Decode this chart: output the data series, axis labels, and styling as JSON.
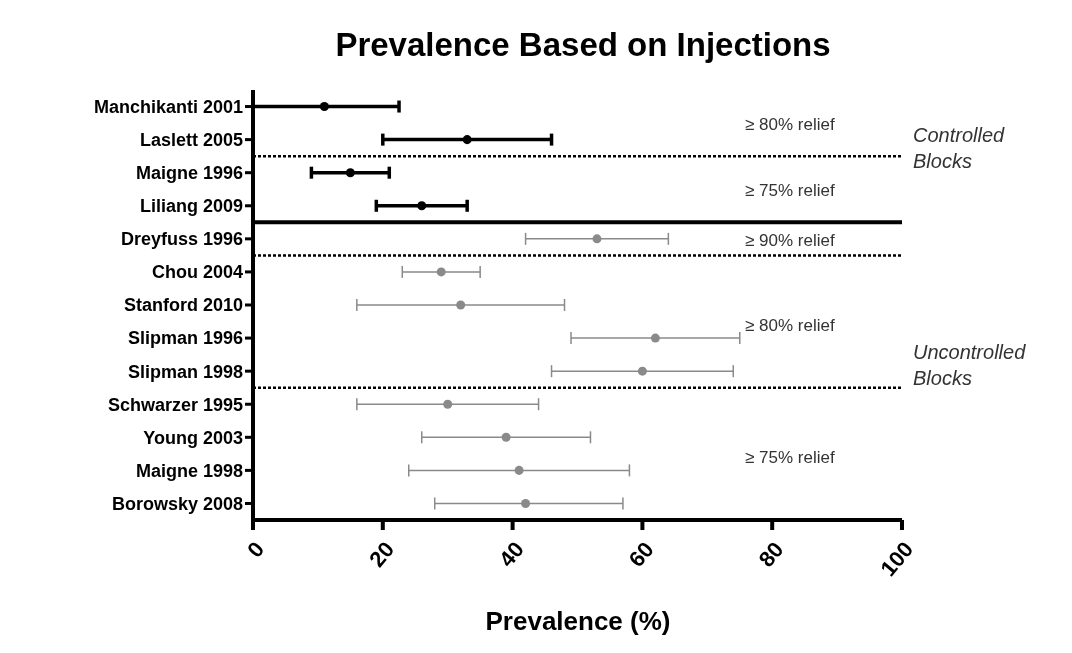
{
  "chart_data": {
    "type": "scatter",
    "title": "Prevalence Based on Injections",
    "xlabel": "Prevalence (%)",
    "orientation": "horizontal",
    "categories": [
      "Manchikanti 2001",
      "Laslett 2005",
      "Maigne 1996",
      "Liliang 2009",
      "Dreyfuss 1996",
      "Chou 2004",
      "Stanford 2010",
      "Slipman 1996",
      "Slipman 1998",
      "Schwarzer 1995",
      "Young 2003",
      "Maigne 1998",
      "Borowsky 2008"
    ],
    "series": [
      {
        "color": "#000000",
        "values": [
          11,
          33,
          15,
          26,
          null,
          null,
          null,
          null,
          null,
          null,
          null,
          null,
          null
        ],
        "errors": [
          [
            0,
            22.5
          ],
          [
            20,
            46
          ],
          [
            9,
            21
          ],
          [
            19,
            33
          ],
          null,
          null,
          null,
          null,
          null,
          null,
          null,
          null,
          null
        ]
      },
      {
        "color": "#8a8a8a",
        "values": [
          null,
          null,
          null,
          null,
          53,
          29,
          32,
          62,
          60,
          30,
          39,
          41,
          42
        ],
        "errors": [
          null,
          null,
          null,
          null,
          [
            42,
            64
          ],
          [
            23,
            35
          ],
          [
            16,
            48
          ],
          [
            49,
            75
          ],
          [
            46,
            74
          ],
          [
            16,
            44
          ],
          [
            26,
            52
          ],
          [
            24,
            58
          ],
          [
            28,
            57
          ]
        ]
      }
    ],
    "xlim": [
      0,
      100
    ],
    "xticks": [
      0,
      20,
      40,
      60,
      80,
      100
    ],
    "ref_lines": [
      {
        "axis": "y",
        "value": "Laslett 2005",
        "line_style": "dotted"
      },
      {
        "axis": "y",
        "value": "Liliang 2009",
        "line_style": "solid"
      },
      {
        "axis": "y",
        "value": "Dreyfuss 1996",
        "line_style": "dotted"
      },
      {
        "axis": "y",
        "value": "Slipman 1998",
        "line_style": "dotted"
      }
    ],
    "annotations": [
      "≥ 80% relief",
      "≥ 75% relief",
      "≥ 90% relief",
      "≥ 80% relief",
      "≥ 75% relief",
      "Controlled Blocks",
      "Uncontrolled Blocks"
    ],
    "marker": "circle",
    "grid": false
  }
}
